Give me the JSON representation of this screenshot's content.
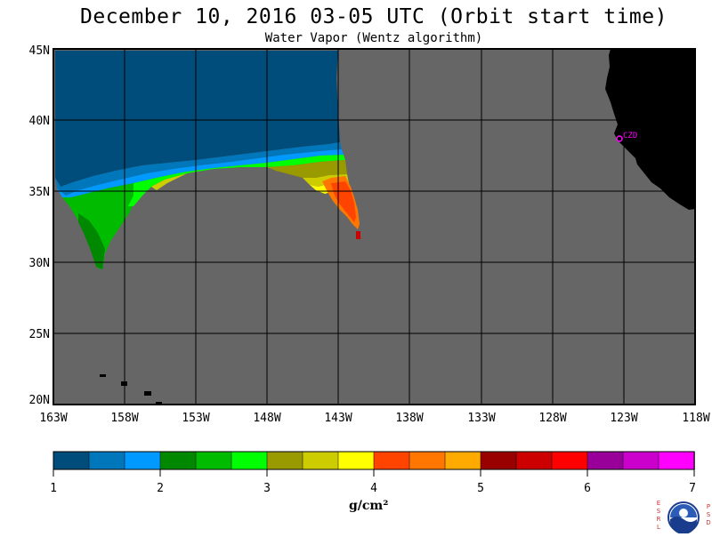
{
  "header": {
    "title": "December 10, 2016  03-05 UTC  (Orbit start time)",
    "subtitle": "Water Vapor (Wentz algorithm)"
  },
  "map": {
    "lat_labels": [
      "45N",
      "40N",
      "35N",
      "30N",
      "25N",
      "20N"
    ],
    "lon_labels": [
      "163W",
      "158W",
      "153W",
      "148W",
      "143W",
      "138W",
      "133W",
      "128W",
      "123W",
      "118W"
    ],
    "station_label": "CZD",
    "colors": {
      "no_data": "#666666",
      "land": "#000000",
      "grid": "#000000",
      "station": "#ff00ff"
    }
  },
  "colorbar": {
    "tick_labels": [
      "1",
      "2",
      "3",
      "4",
      "5",
      "6",
      "7"
    ],
    "units": "g/cm²",
    "colors": [
      "#004c7a",
      "#0077bb",
      "#0099ff",
      "#008800",
      "#00bb00",
      "#00ff00",
      "#999900",
      "#cccc00",
      "#ffff00",
      "#ff4400",
      "#ff7700",
      "#ffaa00",
      "#990000",
      "#cc0000",
      "#ff0000",
      "#990099",
      "#cc00cc",
      "#ff00ff"
    ]
  },
  "logo": {
    "left_letters": "ESRL",
    "right_letters": "PSD",
    "text": "NOAA"
  }
}
